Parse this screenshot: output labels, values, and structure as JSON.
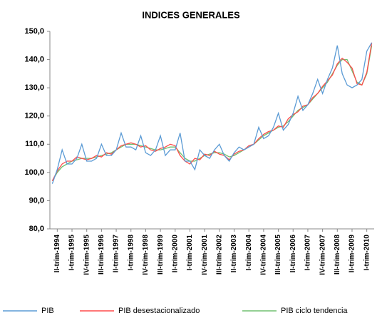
{
  "chart_data": {
    "type": "line",
    "title": "INDICES GENERALES",
    "categories": [
      null,
      "II-trim-1994",
      null,
      null,
      "I-trim-1995",
      null,
      null,
      "IV-trim-1995",
      null,
      null,
      "III-trim-1996",
      null,
      null,
      "II-trim-1997",
      null,
      null,
      "I-trim-1998",
      null,
      null,
      "IV-trim-1998",
      null,
      null,
      "III-trim-1999",
      null,
      null,
      "II-trim-2000",
      null,
      null,
      "I-trim-2001",
      null,
      null,
      "IV-trim-2001",
      null,
      null,
      "III-trim-2002",
      null,
      null,
      "II-trim-2003",
      null,
      null,
      "I-trim-2004",
      null,
      null,
      "IV-trim-2004",
      null,
      null,
      "III-trim-2005",
      null,
      null,
      "II-trim-2006",
      null,
      null,
      "I-trim-2007",
      null,
      null,
      "IV-trim-2007",
      null,
      null,
      "III-trim-2008",
      null,
      null,
      "II-trim-2009",
      null,
      null,
      "I-trim-2010",
      null
    ],
    "series": [
      {
        "name": "PIB",
        "color": "#5b9bd5",
        "values": [
          96,
          101,
          108,
          103,
          103,
          105,
          110,
          104,
          104,
          105,
          110,
          106,
          106,
          108,
          114,
          109,
          109,
          108,
          113,
          107,
          106,
          108,
          113,
          106,
          108,
          108,
          114,
          104,
          104,
          101,
          108,
          106,
          105,
          108,
          110,
          106,
          104,
          107,
          109,
          108,
          109,
          110,
          116,
          112,
          113,
          116,
          121,
          115,
          117,
          121,
          127,
          122,
          124,
          128,
          133,
          128,
          133,
          137,
          145,
          135,
          131,
          130,
          131,
          133,
          143,
          146
        ]
      },
      {
        "name": "PIB desestacionalizado",
        "color": "#ff4b4b",
        "values": [
          97,
          100.5,
          103,
          104,
          104,
          105.5,
          105,
          104.5,
          105,
          106,
          105.5,
          107,
          106.5,
          108,
          109.5,
          110,
          110.5,
          110,
          109,
          109.5,
          108,
          107.5,
          108.5,
          109,
          110,
          109.5,
          106,
          104,
          103,
          105,
          104.5,
          106.5,
          106,
          107.5,
          106.5,
          106,
          104.5,
          106.5,
          107.5,
          108,
          109.5,
          110,
          112,
          113.5,
          114.5,
          115,
          116.5,
          116,
          119,
          120.5,
          121.5,
          123.5,
          124,
          126.5,
          128,
          130.5,
          132.5,
          134.5,
          138.5,
          140.5,
          139,
          137,
          131.5,
          131,
          135.5,
          146
        ]
      },
      {
        "name": "PIB ciclo tendencia",
        "color": "#70c070",
        "values": [
          97,
          100,
          102,
          103,
          104,
          104.5,
          105,
          105,
          105,
          105.5,
          106,
          106.5,
          107,
          108,
          109,
          110,
          110,
          110,
          109.5,
          109,
          108.5,
          108,
          108,
          108.5,
          109,
          109,
          107,
          105,
          104,
          104,
          105,
          106,
          106.5,
          107,
          107,
          106.5,
          105.5,
          106,
          107,
          108,
          109,
          110,
          111.5,
          113,
          114,
          115,
          116,
          116.5,
          118,
          120,
          122,
          123,
          124,
          126,
          128,
          130,
          132,
          135,
          138,
          140,
          140,
          136,
          132,
          131,
          135,
          145
        ]
      }
    ],
    "ylim": [
      80,
      150
    ],
    "yticks": [
      {
        "value": 80,
        "label": "80,0"
      },
      {
        "value": 90,
        "label": "90,0"
      },
      {
        "value": 100,
        "label": "100,0"
      },
      {
        "value": 110,
        "label": "110,0"
      },
      {
        "value": 120,
        "label": "120,0"
      },
      {
        "value": 130,
        "label": "130,0"
      },
      {
        "value": 140,
        "label": "140,0"
      },
      {
        "value": 150,
        "label": "150,0"
      }
    ],
    "grid": false
  }
}
